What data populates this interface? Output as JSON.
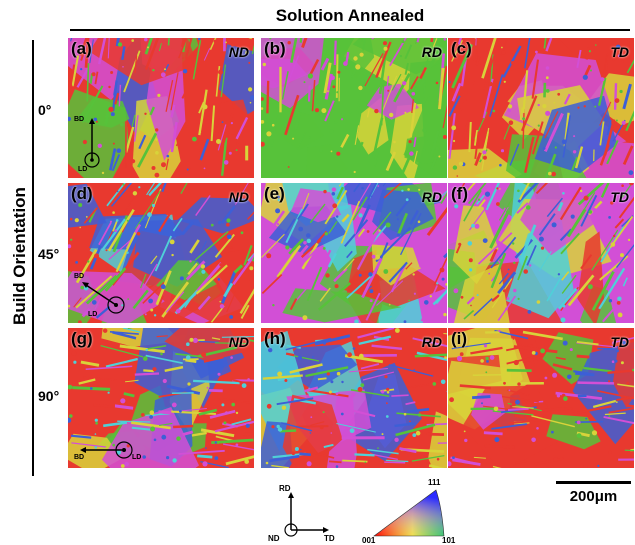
{
  "figure": {
    "title": "Solution Annealed",
    "side_label": "Build Orientation",
    "rows": [
      {
        "angle": "0°",
        "axes": {
          "up": "BD",
          "side": "LD"
        }
      },
      {
        "angle": "45°",
        "axes": {
          "up": "BD",
          "side": "LD"
        }
      },
      {
        "angle": "90°",
        "axes": {
          "up": "BD",
          "side": "LD"
        }
      }
    ],
    "panels": [
      {
        "label": "(a)",
        "direction": "ND"
      },
      {
        "label": "(b)",
        "direction": "RD"
      },
      {
        "label": "(c)",
        "direction": "TD"
      },
      {
        "label": "(d)",
        "direction": "ND"
      },
      {
        "label": "(e)",
        "direction": "RD"
      },
      {
        "label": "(f)",
        "direction": "TD"
      },
      {
        "label": "(g)",
        "direction": "ND"
      },
      {
        "label": "(h)",
        "direction": "RD"
      },
      {
        "label": "(i)",
        "direction": "TD"
      }
    ],
    "scale_bar": "200μm",
    "key_axes": {
      "up": "RD",
      "right": "TD",
      "center": "ND"
    },
    "ipf_legend": {
      "top": "111",
      "left": "001",
      "right": "101"
    }
  },
  "colors": {
    "red": "#e8392f",
    "green": "#57c23a",
    "blue": "#3d5fd6",
    "magenta": "#d24fd6",
    "yellow": "#d8d33a",
    "cyan": "#4fd0d8"
  }
}
